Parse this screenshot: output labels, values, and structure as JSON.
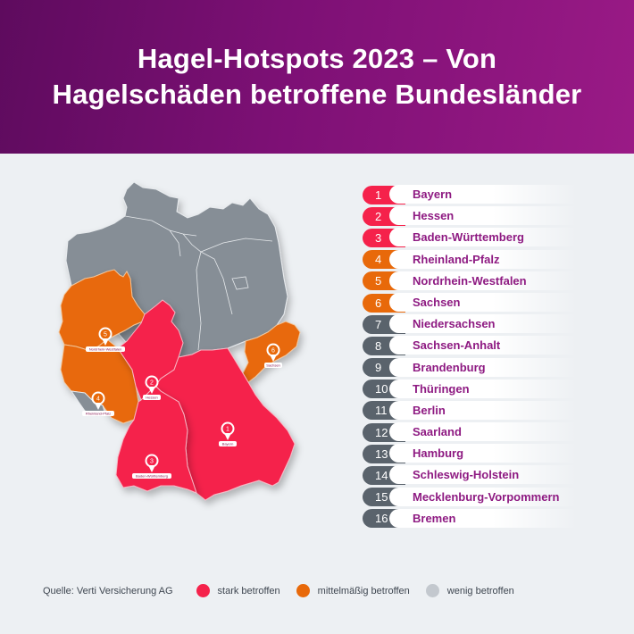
{
  "header": {
    "title_line1": "Hagel-Hotspots 2023 – Von",
    "title_line2": "Hagelschäden betroffene Bundesländer"
  },
  "colors": {
    "header_start": "#5e0b5e",
    "header_end": "#9a1a86",
    "stark": "#f5224b",
    "mittel": "#e8690a",
    "wenig": "#868e96",
    "name_text": "#8e1a82",
    "legend_wenig_dot": "#c3c8ce",
    "rank_gray": "#5a636c"
  },
  "ranking": [
    {
      "rank": "1",
      "name": "Bayern",
      "level": "stark"
    },
    {
      "rank": "2",
      "name": "Hessen",
      "level": "stark"
    },
    {
      "rank": "3",
      "name": "Baden-Württemberg",
      "level": "stark"
    },
    {
      "rank": "4",
      "name": "Rheinland-Pfalz",
      "level": "mittel"
    },
    {
      "rank": "5",
      "name": "Nordrhein-Westfalen",
      "level": "mittel"
    },
    {
      "rank": "6",
      "name": "Sachsen",
      "level": "mittel"
    },
    {
      "rank": "7",
      "name": "Niedersachsen",
      "level": "wenig"
    },
    {
      "rank": "8",
      "name": "Sachsen-Anhalt",
      "level": "wenig"
    },
    {
      "rank": "9",
      "name": "Brandenburg",
      "level": "wenig"
    },
    {
      "rank": "10",
      "name": "Thüringen",
      "level": "wenig"
    },
    {
      "rank": "11",
      "name": "Berlin",
      "level": "wenig"
    },
    {
      "rank": "12",
      "name": "Saarland",
      "level": "wenig"
    },
    {
      "rank": "13",
      "name": "Hamburg",
      "level": "wenig"
    },
    {
      "rank": "14",
      "name": "Schleswig-Holstein",
      "level": "wenig"
    },
    {
      "rank": "15",
      "name": "Mecklenburg-Vorpommern",
      "level": "wenig"
    },
    {
      "rank": "16",
      "name": "Bremen",
      "level": "wenig"
    }
  ],
  "map": {
    "pins": [
      {
        "rank": "1",
        "label": "Bayern"
      },
      {
        "rank": "2",
        "label": "Hessen"
      },
      {
        "rank": "3",
        "label": "Baden-Württemberg"
      },
      {
        "rank": "4",
        "label": "Rheinland-Pfalz"
      },
      {
        "rank": "5",
        "label": "Nordrhein-Westfalen"
      },
      {
        "rank": "6",
        "label": "Sachsen"
      }
    ]
  },
  "legend": {
    "source": "Quelle: Verti Versicherung AG",
    "items": [
      {
        "label": "stark betroffen",
        "color": "#f5224b"
      },
      {
        "label": "mittelmäßig betroffen",
        "color": "#e8690a"
      },
      {
        "label": "wenig betroffen",
        "color": "#c3c8ce"
      }
    ]
  }
}
